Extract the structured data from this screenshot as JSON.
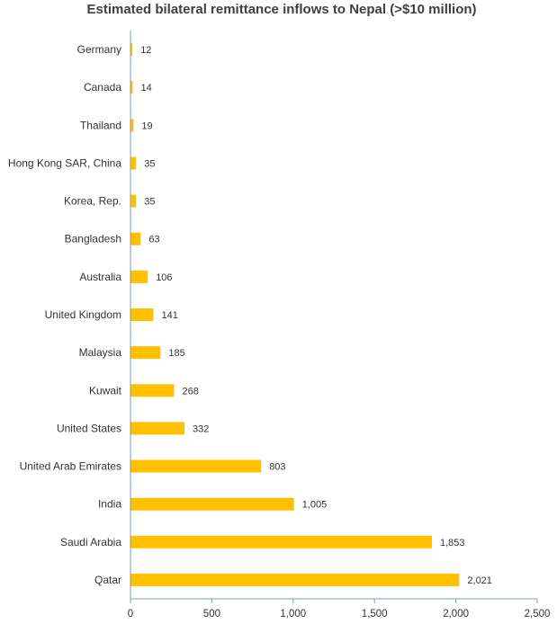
{
  "chart_data": {
    "type": "bar",
    "orientation": "horizontal",
    "title": "Estimated bilateral remittance inflows to Nepal (>$10 million)",
    "xlabel": "",
    "ylabel": "",
    "categories": [
      "Germany",
      "Canada",
      "Thailand",
      "Hong Kong SAR, China",
      "Korea, Rep.",
      "Bangladesh",
      "Australia",
      "United Kingdom",
      "Malaysia",
      "Kuwait",
      "United States",
      "United Arab Emirates",
      "India",
      "Saudi Arabia",
      "Qatar"
    ],
    "values": [
      12,
      14,
      19,
      35,
      35,
      63,
      106,
      141,
      185,
      268,
      332,
      803,
      1005,
      1853,
      2021
    ],
    "value_labels": [
      "12",
      "14",
      "19",
      "35",
      "35",
      "63",
      "106",
      "141",
      "185",
      "268",
      "332",
      "803",
      "1,005",
      "1,853",
      "2,021"
    ],
    "xlim": [
      0,
      2500
    ],
    "xticks": [
      0,
      500,
      1000,
      1500,
      2000,
      2500
    ],
    "xtick_labels": [
      "0",
      "500",
      "1,000",
      "1,500",
      "2,000",
      "2,500"
    ],
    "grid": false,
    "legend": "none",
    "colors": {
      "bar": "#FFC000",
      "axis": "#7F9DB9"
    }
  }
}
